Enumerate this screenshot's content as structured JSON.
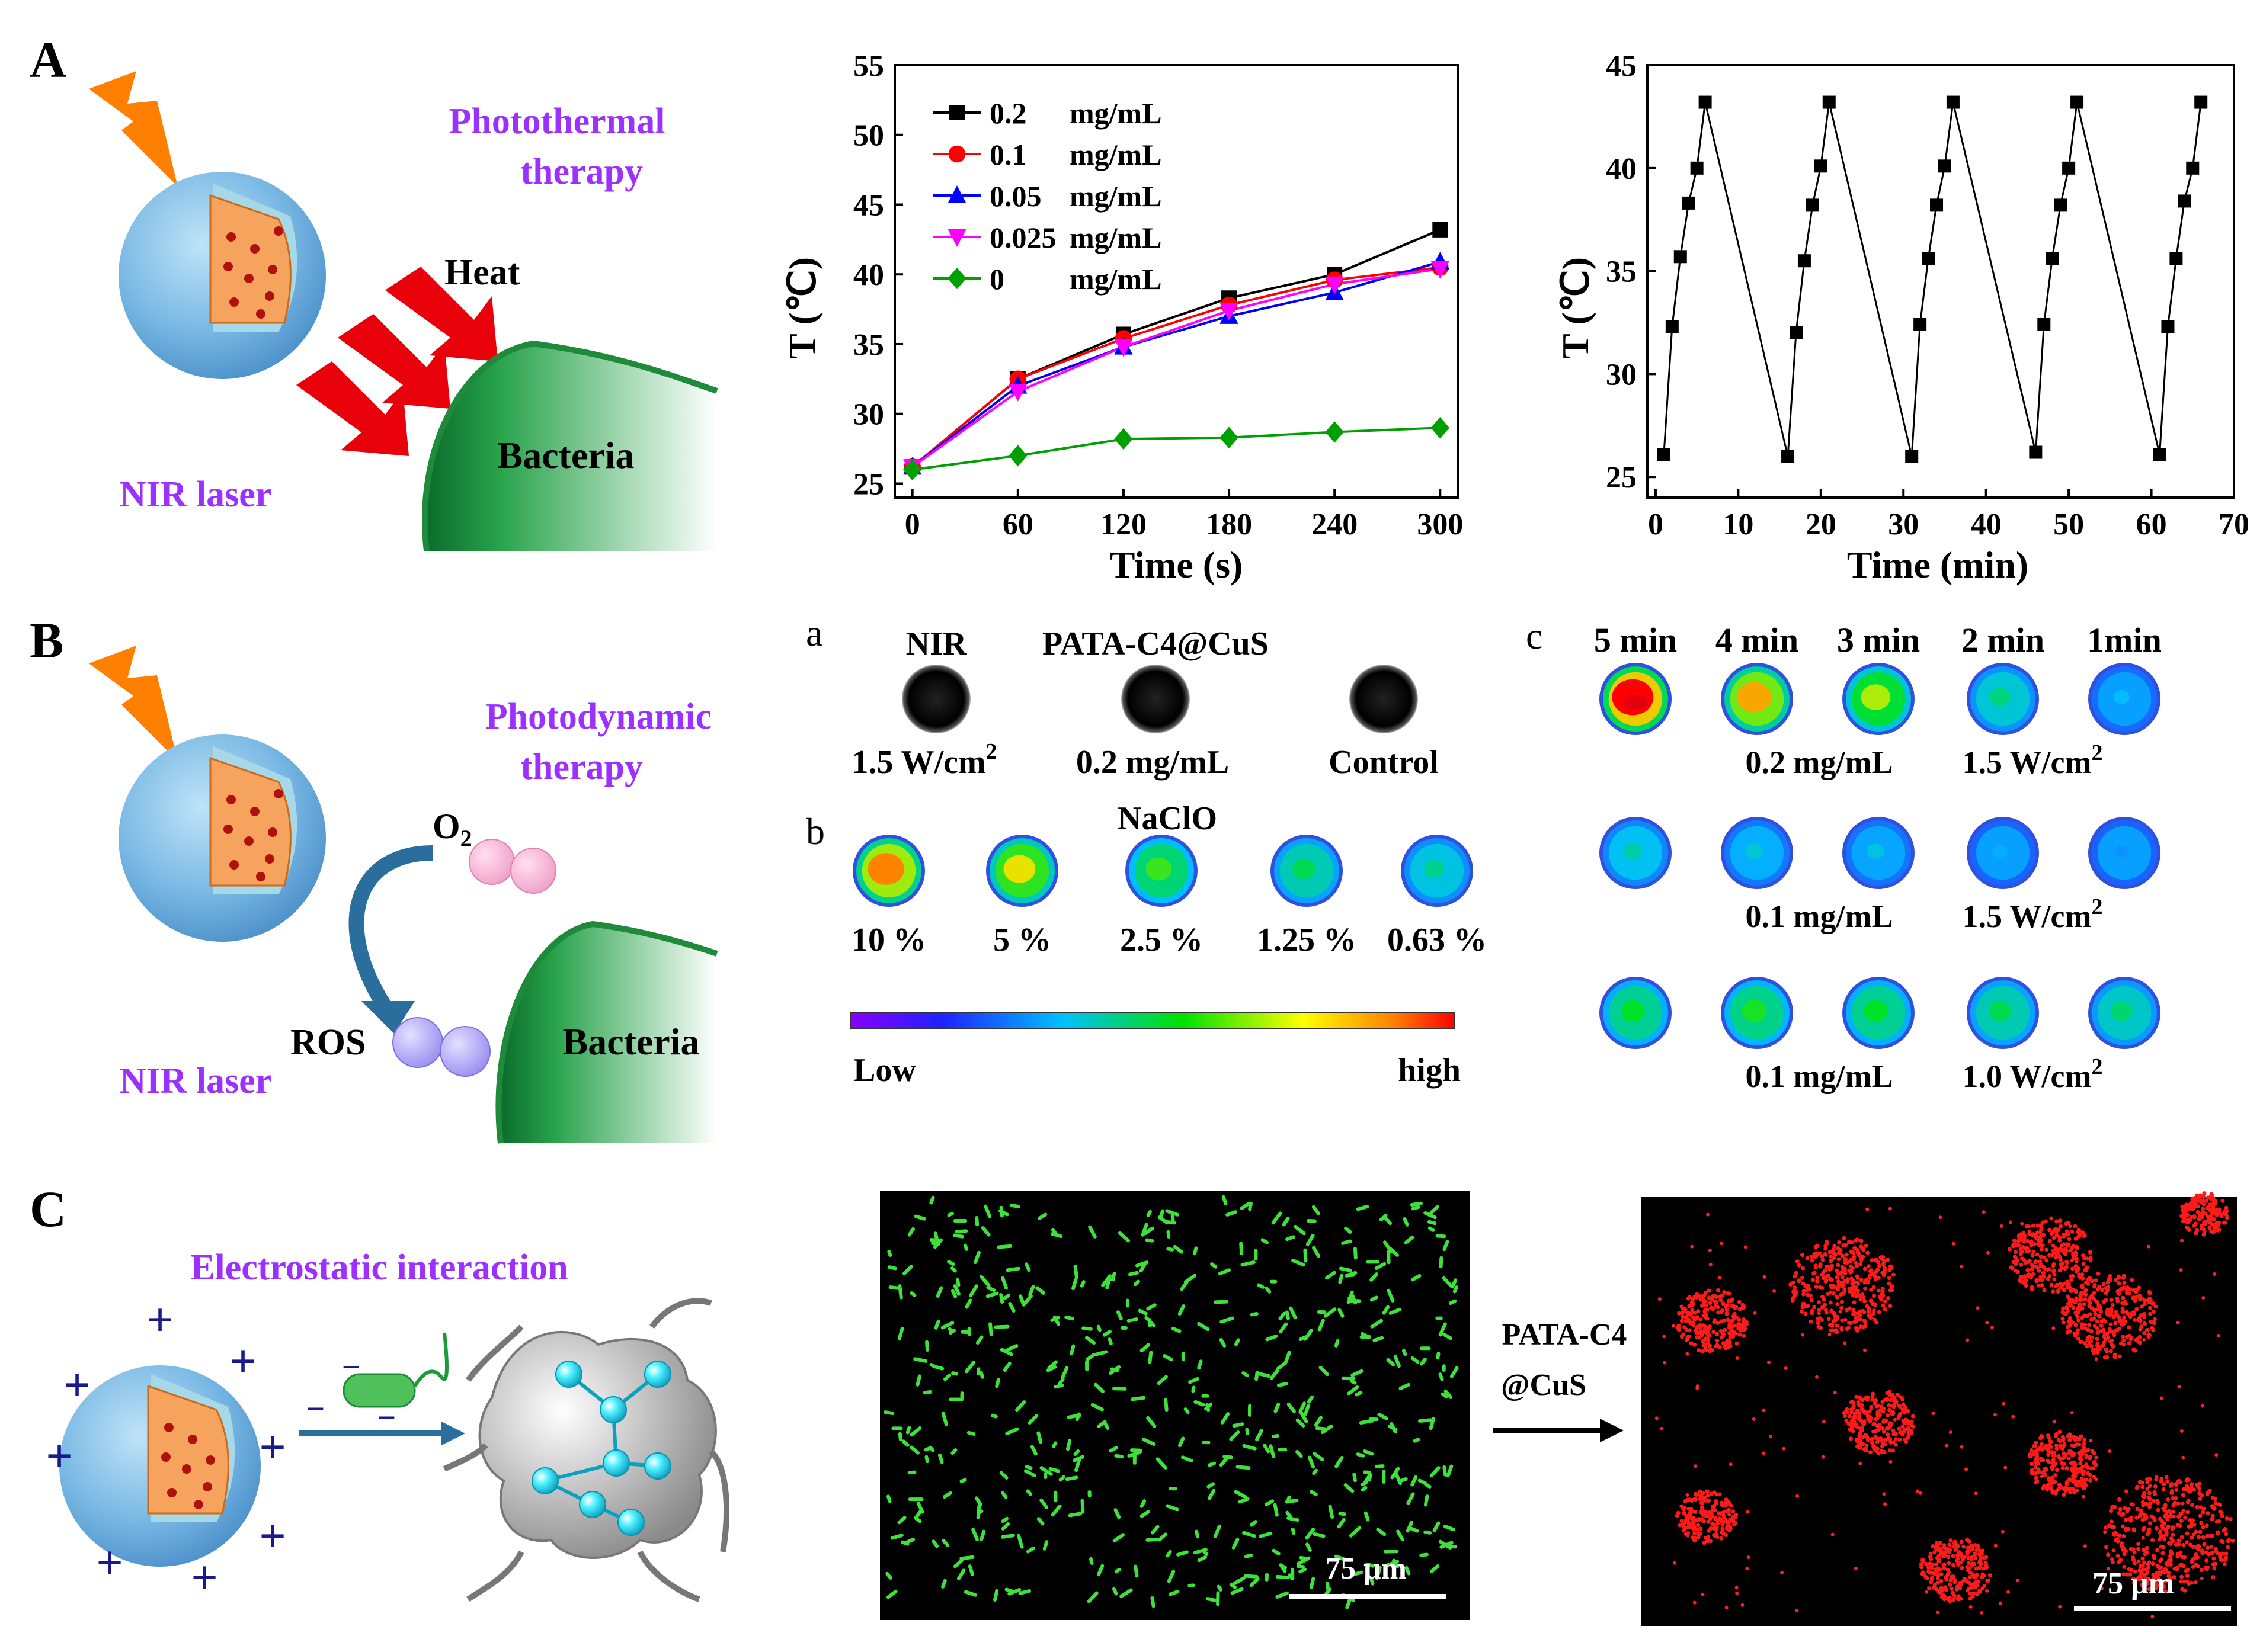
{
  "panels": {
    "A": {
      "letter": "A",
      "title": "Photothermal therapy",
      "title_line1": "Photothermal",
      "title_line2": "therapy",
      "heat": "Heat",
      "bacteria": "Bacteria",
      "laser": "NIR laser"
    },
    "B": {
      "letter": "B",
      "title_line1": "Photodynamic",
      "title_line2": "therapy",
      "o2": "O",
      "o2_sub": "2",
      "ros": "ROS",
      "bacteria": "Bacteria",
      "laser": "NIR laser"
    },
    "C": {
      "letter": "C",
      "interaction": "Electrostatic interaction",
      "arrow_label_line1": "PATA-C4",
      "arrow_label_line2": "@CuS",
      "scale_left": "75 μm",
      "scale_right": "75 μm"
    }
  },
  "chart_data": [
    {
      "type": "line",
      "xlabel": "Time (s)",
      "ylabel": "T (℃)",
      "xlim": [
        -10,
        310
      ],
      "ylim": [
        24,
        55
      ],
      "xticks": [
        0,
        60,
        120,
        180,
        240,
        300
      ],
      "yticks": [
        25,
        30,
        35,
        40,
        45,
        50,
        55
      ],
      "x": [
        0,
        60,
        120,
        180,
        240,
        300
      ],
      "legend_position": "top-left",
      "series": [
        {
          "name": "0.2",
          "unit": "mg/mL",
          "color": "#000000",
          "marker": "square",
          "values": [
            26.2,
            32.5,
            35.7,
            38.3,
            40.0,
            43.2
          ]
        },
        {
          "name": "0.1",
          "unit": "mg/mL",
          "color": "#ff0000",
          "marker": "circle",
          "values": [
            26.2,
            32.5,
            35.4,
            37.8,
            39.6,
            40.5
          ]
        },
        {
          "name": "0.05",
          "unit": "mg/mL",
          "color": "#0000ff",
          "marker": "triangle-up",
          "values": [
            26.2,
            32.0,
            34.8,
            37.0,
            38.7,
            40.9
          ]
        },
        {
          "name": "0.025",
          "unit": "mg/mL",
          "color": "#ff00ff",
          "marker": "triangle-down",
          "values": [
            26.2,
            31.6,
            34.8,
            37.4,
            39.3,
            40.4
          ]
        },
        {
          "name": "0",
          "unit": "mg/mL",
          "color": "#00a000",
          "marker": "diamond",
          "values": [
            26.0,
            27.0,
            28.2,
            28.3,
            28.7,
            29.0
          ]
        }
      ]
    },
    {
      "type": "line",
      "xlabel": "Time (min)",
      "ylabel": "T (℃)",
      "xlim": [
        -1,
        70
      ],
      "ylim": [
        24,
        45
      ],
      "xticks": [
        0,
        10,
        20,
        30,
        40,
        50,
        60,
        70
      ],
      "yticks": [
        25,
        30,
        35,
        40,
        45
      ],
      "series": [
        {
          "color": "#000000",
          "marker": "square",
          "x": [
            1,
            2,
            3,
            4,
            5,
            6,
            16,
            17,
            18,
            19,
            20,
            21,
            31,
            32,
            33,
            34,
            35,
            36,
            46,
            47,
            48,
            49,
            50,
            51,
            61,
            62,
            63,
            64,
            65,
            66
          ],
          "values": [
            26.1,
            32.3,
            35.7,
            38.3,
            40.0,
            43.2,
            26.0,
            32.0,
            35.5,
            38.2,
            40.1,
            43.2,
            26.0,
            32.4,
            35.6,
            38.2,
            40.1,
            43.2,
            26.2,
            32.4,
            35.6,
            38.2,
            40.0,
            43.2,
            26.1,
            32.3,
            35.6,
            38.4,
            40.0,
            43.2
          ]
        }
      ]
    }
  ],
  "panel_a": {
    "letter": "a",
    "samples": [
      {
        "top": "NIR",
        "bottom": "1.5 W/cm",
        "sup": "2"
      },
      {
        "top": "PATA-C4@CuS",
        "bottom": "0.2 mg/mL",
        "sup": ""
      },
      {
        "top": "",
        "bottom": "Control",
        "sup": ""
      }
    ]
  },
  "panel_b": {
    "letter": "b",
    "title": "NaClO",
    "labels": [
      "10 %",
      "5 %",
      "2.5 %",
      "1.25 %",
      "0.63 %"
    ],
    "heat": [
      0.85,
      0.72,
      0.55,
      0.45,
      0.38
    ]
  },
  "colorbar": {
    "low": "Low",
    "high": "high"
  },
  "panel_c": {
    "letter": "c",
    "times": [
      "5 min",
      "4 min",
      "3 min",
      "2 min",
      "1min"
    ],
    "rows": [
      {
        "label_conc": "0.2 mg/mL",
        "label_power": "1.5 W/cm",
        "sup": "2",
        "heat": [
          1.0,
          0.8,
          0.65,
          0.4,
          0.25
        ]
      },
      {
        "label_conc": "0.1 mg/mL",
        "label_power": "1.5 W/cm",
        "sup": "2",
        "heat": [
          0.35,
          0.3,
          0.28,
          0.22,
          0.18
        ]
      },
      {
        "label_conc": "0.1 mg/mL",
        "label_power": "1.0 W/cm",
        "sup": "2",
        "heat": [
          0.5,
          0.52,
          0.5,
          0.45,
          0.42
        ]
      }
    ]
  },
  "colors": {
    "accent_purple": "#9b30ff",
    "bacteria_green": "#1e8a3a",
    "heat_red": "#e8000b",
    "bolt_orange": "#ff7f00",
    "nav_blue": "#1a1a8c"
  }
}
